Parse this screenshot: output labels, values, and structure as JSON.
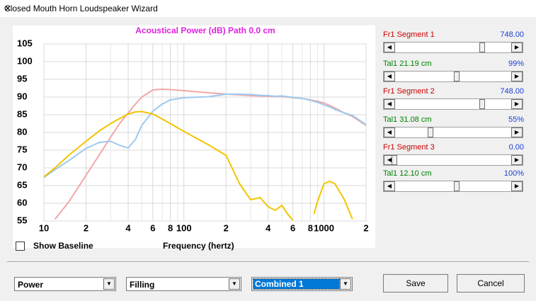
{
  "window": {
    "title": "Closed Mouth Horn Loudspeaker Wizard"
  },
  "chart_data": {
    "type": "line",
    "title": "Acoustical Power (dB)   Path 0.0 cm",
    "x_label": "Frequency (hertz)",
    "x": [
      10,
      12,
      15,
      20,
      25,
      30,
      35,
      40,
      45,
      50,
      60,
      70,
      80,
      100,
      150,
      200,
      250,
      300,
      350,
      400,
      450,
      500,
      550,
      600,
      700,
      800,
      850,
      900,
      1000,
      1100,
      1200,
      1400,
      1600,
      2000
    ],
    "series": [
      {
        "color": "#f4a6a6",
        "values": [
          null,
          55.5,
          60.3,
          67.9,
          73.8,
          78.7,
          82.7,
          85.5,
          88,
          90,
          92,
          92.2,
          92.1,
          91.8,
          91.2,
          90.8,
          90.6,
          90.4,
          90.3,
          90.2,
          90.1,
          90.1,
          90,
          89.8,
          89.6,
          89.2,
          89,
          88.8,
          88.3,
          87.6,
          86.9,
          85.5,
          84.5,
          82
        ]
      },
      {
        "color": "#9ccaf0",
        "values": [
          67.3,
          69.5,
          72,
          75.5,
          77.2,
          77.5,
          76.3,
          75.6,
          78,
          82,
          86,
          88,
          89.2,
          89.8,
          90.1,
          90.8,
          90.8,
          90.7,
          90.5,
          90.4,
          90.2,
          90.3,
          90.1,
          89.9,
          89.6,
          89.1,
          88.8,
          88.5,
          87.8,
          87.2,
          86.5,
          85.5,
          84.8,
          82.2
        ]
      },
      {
        "color": "#f2c500",
        "values": [
          67.5,
          70,
          73.5,
          77.5,
          80.5,
          82.5,
          84,
          85.2,
          85.8,
          85.9,
          85.2,
          83.8,
          82.5,
          80.3,
          76.5,
          73.5,
          65.5,
          61,
          61.6,
          59,
          58,
          59.4,
          57,
          55.2,
          null,
          null,
          57,
          60.5,
          65.5,
          66.2,
          65.5,
          61,
          55.5,
          null
        ]
      }
    ],
    "log_x": true,
    "grid": true,
    "xlim": [
      10,
      2000
    ],
    "ylim": [
      55,
      105
    ],
    "xticks": [
      10,
      {
        "value": 20,
        "label": "2"
      },
      {
        "value": 40,
        "label": "4"
      },
      {
        "value": 60,
        "label": "6"
      },
      {
        "value": 80,
        "label": "8"
      },
      100,
      {
        "value": 200,
        "label": "2"
      },
      {
        "value": 400,
        "label": "4"
      },
      {
        "value": 600,
        "label": "6"
      },
      {
        "value": 800,
        "label": "8"
      },
      1000,
      {
        "value": 2000,
        "label": "2"
      }
    ],
    "x_minor_grid": [
      30,
      50,
      70,
      90,
      300,
      500,
      700,
      900
    ],
    "yticks": [
      55,
      60,
      65,
      70,
      75,
      80,
      85,
      90,
      95,
      100,
      105
    ]
  },
  "sliders": [
    {
      "label": "Fr1  Segment 1",
      "value": "748.00"
    },
    {
      "label": "Tal1  21.19 cm",
      "value": "99%"
    },
    {
      "label": "Fr1  Segment 2",
      "value": "748.00"
    },
    {
      "label": "Tal1  31.08 cm",
      "value": "55%"
    },
    {
      "label": "Fr1  Segment 3",
      "value": "0.00"
    },
    {
      "label": "Tal1  12.10 cm",
      "value": "100%"
    }
  ],
  "controls": {
    "baseline_checkbox": "Show Baseline",
    "dropdowns": [
      "Power",
      "Filling",
      "Combined 1"
    ],
    "save": "Save",
    "cancel": "Cancel"
  }
}
